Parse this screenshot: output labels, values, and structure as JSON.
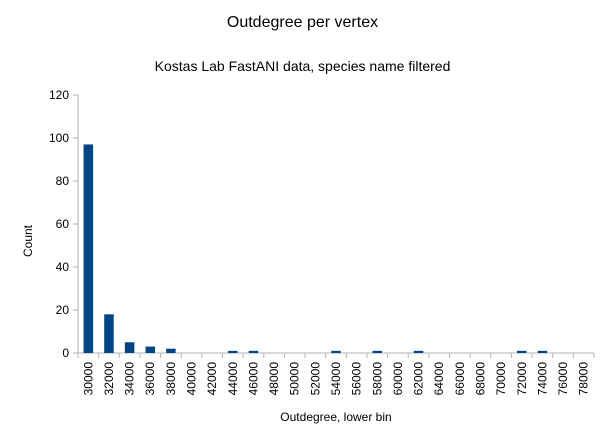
{
  "chart_data": {
    "type": "bar",
    "title": "Outdegree per vertex",
    "subtitle": "Kostas Lab FastANI data, species name filtered",
    "xlabel": "Outdegree, lower bin",
    "ylabel": "Count",
    "ylim": [
      0,
      120
    ],
    "yticks": [
      0,
      20,
      40,
      60,
      80,
      100,
      120
    ],
    "grid": false,
    "legend": "none",
    "bar_color": "#004586",
    "categories": [
      "30000",
      "32000",
      "34000",
      "36000",
      "38000",
      "40000",
      "42000",
      "44000",
      "46000",
      "48000",
      "50000",
      "52000",
      "54000",
      "56000",
      "58000",
      "60000",
      "62000",
      "64000",
      "66000",
      "68000",
      "70000",
      "72000",
      "74000",
      "76000",
      "78000"
    ],
    "values": [
      97,
      18,
      5,
      3,
      2,
      0,
      0,
      1,
      1,
      0,
      0,
      0,
      1,
      0,
      1,
      0,
      1,
      0,
      0,
      0,
      0,
      1,
      1,
      0,
      0
    ]
  }
}
